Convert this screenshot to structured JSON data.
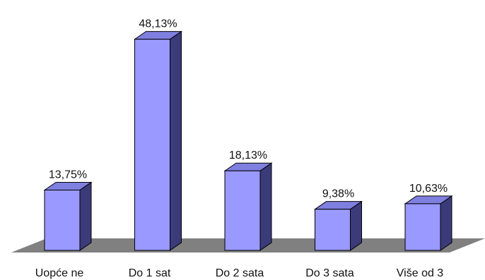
{
  "chart_data": {
    "type": "bar",
    "title": "",
    "xlabel": "",
    "ylabel": "",
    "ylim": [
      0,
      50
    ],
    "grid": false,
    "legend": "none",
    "categories": [
      "Uopće ne",
      "Do 1 sat",
      "Do 2 sata",
      "Do 3 sata",
      "Više od 3"
    ],
    "values": [
      13.75,
      48.13,
      18.13,
      9.38,
      10.63
    ],
    "value_labels": [
      "13,75%",
      "48,13%",
      "18,13%",
      "9,38%",
      "10,63%"
    ]
  },
  "colors": {
    "bar_front": "#9999ff",
    "bar_side": "#3b3b7a",
    "bar_top": "#7f7fe0",
    "floor": "#808080",
    "outline": "#000000"
  }
}
